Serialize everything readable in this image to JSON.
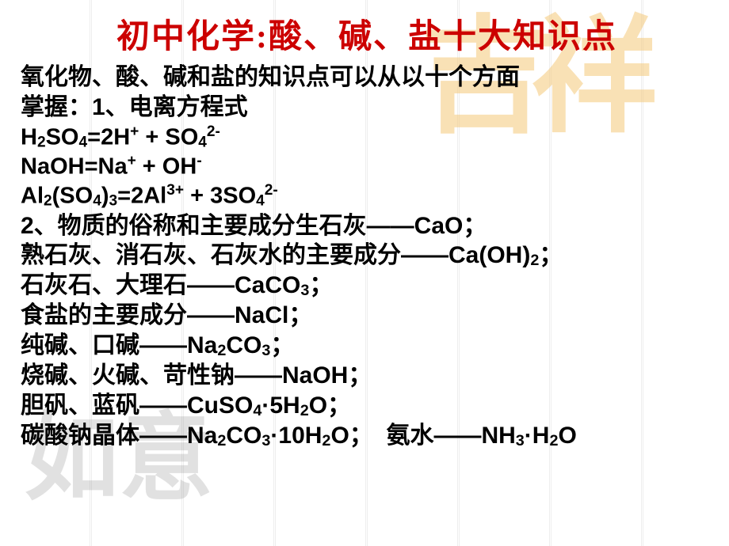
{
  "title": {
    "text": "初中化学:酸、碱、盐十大知识点",
    "color": "#cc0000"
  },
  "watermarks": {
    "top_right": "吉祥",
    "bottom_left": "如意"
  },
  "lines": [
    {
      "type": "text",
      "content": "氧化物、酸、碱和盐的知识点可以从以十个方面"
    },
    {
      "type": "text",
      "content": "掌握：1、电离方程式"
    },
    {
      "type": "eq",
      "html": "H<span class='sub'>2</span>SO<span class='sub'>4</span>=2H<span class='sup'>+</span> + SO<span class='sub'>4</span><span class='sup'>2-</span>"
    },
    {
      "type": "eq",
      "html": "NaOH=Na<span class='sup'>+</span> + OH<span class='sup'>-</span>"
    },
    {
      "type": "eq",
      "html": "Al<span class='sub'>2</span>(SO<span class='sub'>4</span>)<span class='sub'>3</span>=2Al<span class='sup'>3+</span> + 3SO<span class='sub'>4</span><span class='sup'>2-</span>"
    },
    {
      "type": "text",
      "content": "2、物质的俗称和主要成分生石灰——CaO；"
    },
    {
      "type": "html",
      "html": "熟石灰、消石灰、石灰水的主要成分——Ca(OH)<span class='sub'>2</span>；"
    },
    {
      "type": "html",
      "html": "石灰石、大理石——CaCO<span class='sub'>3</span>；"
    },
    {
      "type": "text",
      "content": "食盐的主要成分——NaCl；"
    },
    {
      "type": "html",
      "html": "纯碱、口碱——Na<span class='sub'>2</span>CO<span class='sub'>3</span>；"
    },
    {
      "type": "text",
      "content": "烧碱、火碱、苛性钠——NaOH；"
    },
    {
      "type": "html",
      "html": "胆矾、蓝矾——CuSO<span class='sub'>4</span>·5H<span class='sub'>2</span>O；"
    },
    {
      "type": "html",
      "html": "碳酸钠晶体——Na<span class='sub'>2</span>CO<span class='sub'>3</span>·10H<span class='sub'>2</span>O；&nbsp;&nbsp;氨水——NH<span class='sub'>3</span>·H<span class='sub'>2</span>O"
    }
  ],
  "style": {
    "body_font_size": 30,
    "title_font_size": 42,
    "text_color": "#000000",
    "title_color": "#cc0000",
    "bg_color": "#ffffff",
    "watermark_top_color": "#f5c97a",
    "watermark_bottom_color": "#8a8a8a",
    "grid_line_color": "#dddddd"
  }
}
